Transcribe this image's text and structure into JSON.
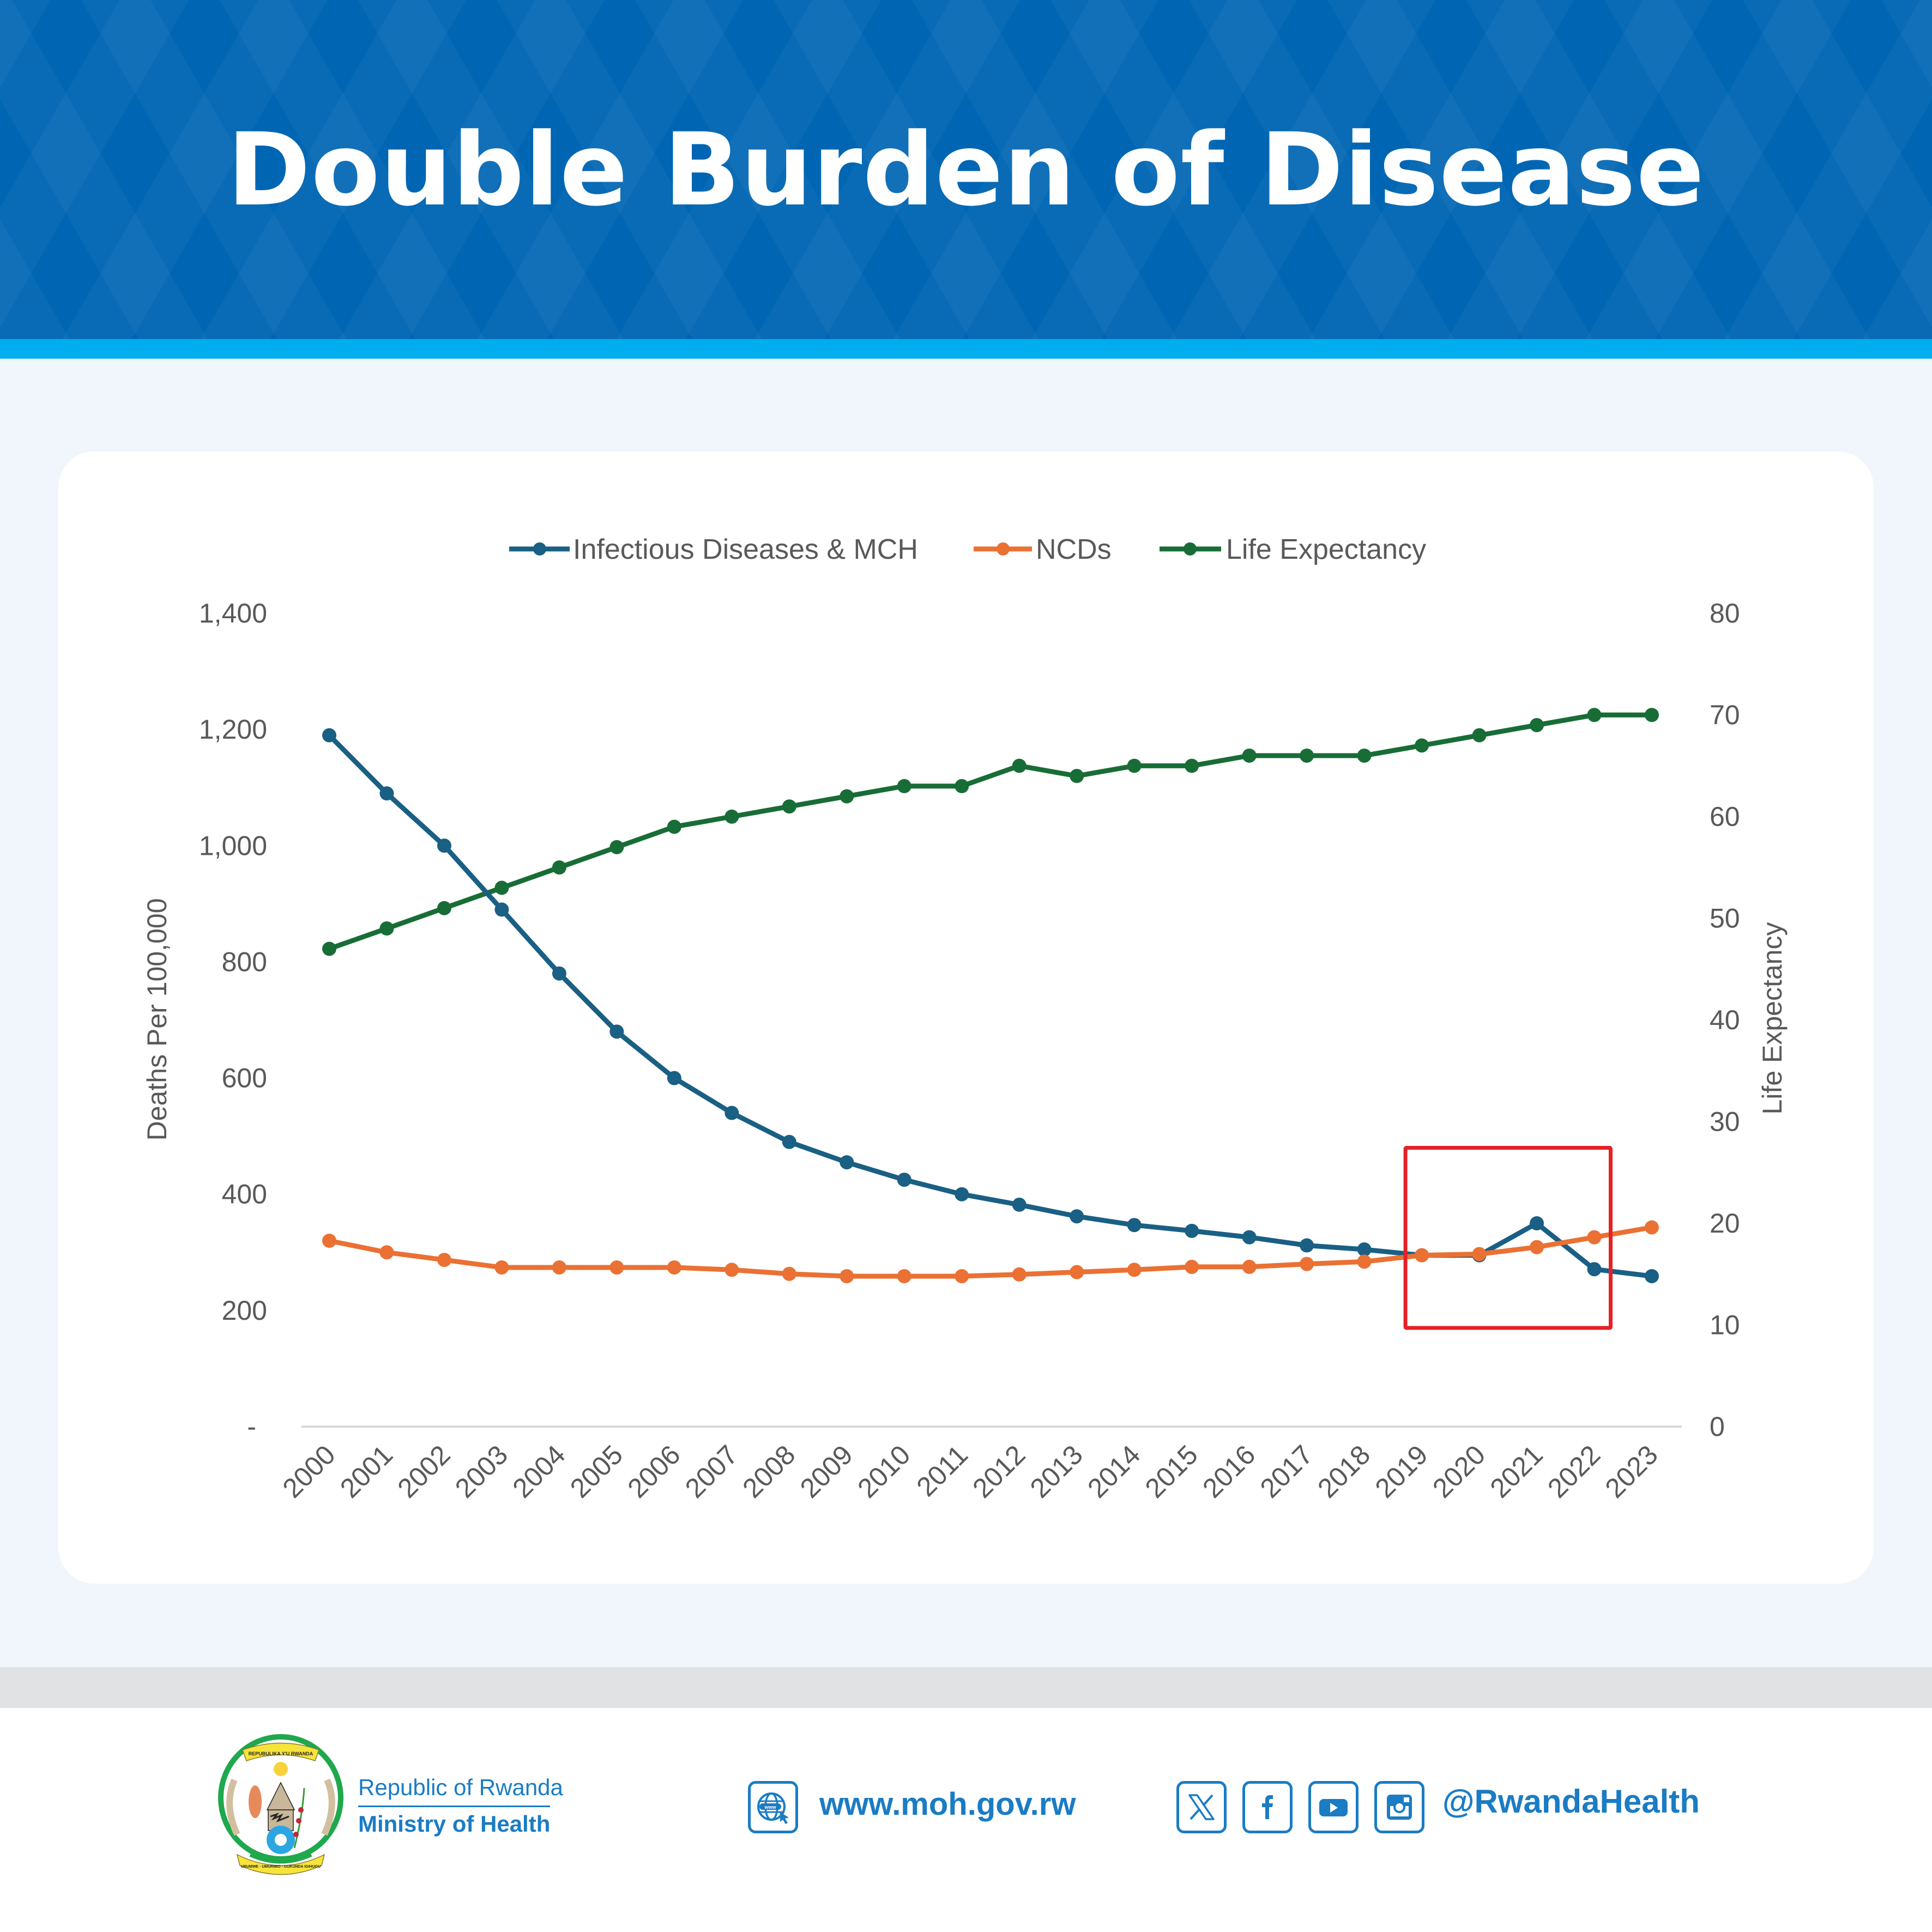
{
  "header": {
    "title": "Double Burden of Disease"
  },
  "colors": {
    "header_bg": "#0066B3",
    "accent": "#00AEEF",
    "infectious": "#1A5F84",
    "ncds": "#EA7133",
    "life_expectancy": "#186D36",
    "highlight_box": "#E42127",
    "brand_blue": "#1A7CC4"
  },
  "chart_data": {
    "type": "line",
    "title": "",
    "x": [
      "2000",
      "2001",
      "2002",
      "2003",
      "2004",
      "2005",
      "2006",
      "2007",
      "2008",
      "2009",
      "2010",
      "2011",
      "2012",
      "2013",
      "2014",
      "2015",
      "2016",
      "2017",
      "2018",
      "2019",
      "2020",
      "2021",
      "2022",
      "2023"
    ],
    "xlabel": "",
    "ylabel": "Deaths Per 100,000",
    "y2label": "Life Expectancy",
    "ylim": [
      0,
      1400
    ],
    "y2lim": [
      0,
      80
    ],
    "yticks": [
      "-",
      "200",
      "400",
      "600",
      "800",
      "1,000",
      "1,200",
      "1,400"
    ],
    "y2ticks": [
      "0",
      "10",
      "20",
      "30",
      "40",
      "50",
      "60",
      "70",
      "80"
    ],
    "grid": false,
    "legend_position": "top-center",
    "series": [
      {
        "name": "Infectious Diseases & MCH",
        "axis": "left",
        "values": [
          1190,
          1090,
          1000,
          890,
          780,
          680,
          600,
          540,
          490,
          455,
          425,
          400,
          382,
          362,
          347,
          337,
          326,
          312,
          305,
          295,
          295,
          350,
          271,
          259
        ]
      },
      {
        "name": "NCDs",
        "axis": "left",
        "values": [
          320,
          300,
          287,
          274,
          274,
          274,
          274,
          270,
          263,
          259,
          259,
          259,
          262,
          266,
          270,
          275,
          275,
          280,
          284,
          295,
          297,
          309,
          326,
          343
        ]
      },
      {
        "name": "Life Expectancy",
        "axis": "right",
        "values": [
          47,
          49,
          51,
          53,
          55,
          57,
          59,
          60,
          61,
          62,
          63,
          63,
          65,
          64,
          65,
          65,
          66,
          66,
          66,
          67,
          68,
          69,
          70,
          70
        ]
      }
    ],
    "annotations": [
      {
        "type": "highlight-box",
        "x_from": "2019",
        "x_to": "2022",
        "y_from": 170,
        "y_to": 480,
        "axis": "left"
      }
    ]
  },
  "footer": {
    "org_country": "Republic of Rwanda",
    "org_ministry": "Ministry of Health",
    "emblem_top_text": "REPUBULIKA Y'U RWANDA",
    "emblem_bottom_text": "UBUMWE - UMURIMO - GUKUNDA IGIHUGU",
    "website_icon": "globe-www-icon",
    "website_icon_text": "www",
    "website": "www.moh.gov.rw",
    "social_icons": [
      "x-icon",
      "facebook-icon",
      "youtube-icon",
      "instagram-icon"
    ],
    "social_handle": "@RwandaHealth"
  }
}
